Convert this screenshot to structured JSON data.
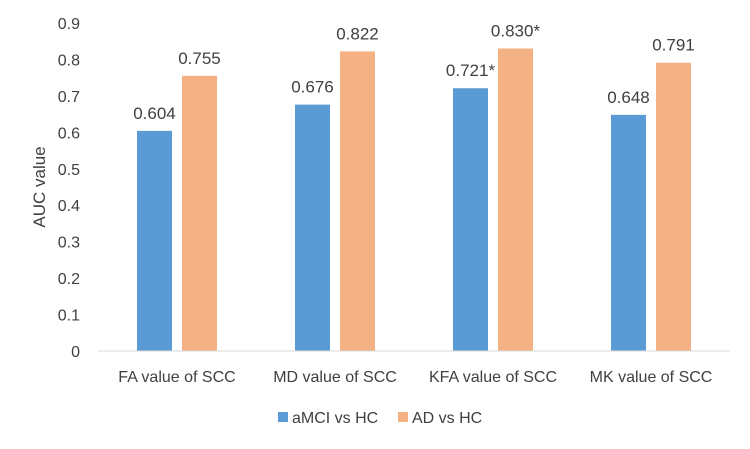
{
  "chart_data": {
    "type": "bar",
    "title": "",
    "xlabel": "",
    "ylabel": "AUC value",
    "ylim": [
      0,
      0.9
    ],
    "yticks": [
      "0",
      "0.1",
      "0.2",
      "0.3",
      "0.4",
      "0.5",
      "0.6",
      "0.7",
      "0.8",
      "0.9"
    ],
    "grid": false,
    "legend_position": "bottom",
    "categories": [
      "FA value of SCC",
      "MD value of SCC",
      "KFA value of SCC",
      "MK value of SCC"
    ],
    "series": [
      {
        "name": "aMCI vs HC",
        "color": "#5B9BD5",
        "values": [
          0.604,
          0.676,
          0.721,
          0.648
        ],
        "labels": [
          "0.604",
          "0.676",
          "0.721*",
          "0.648"
        ]
      },
      {
        "name": "AD vs HC",
        "color": "#F4B183",
        "values": [
          0.755,
          0.822,
          0.83,
          0.791
        ],
        "labels": [
          "0.755",
          "0.822",
          "0.830*",
          "0.791"
        ]
      }
    ]
  }
}
